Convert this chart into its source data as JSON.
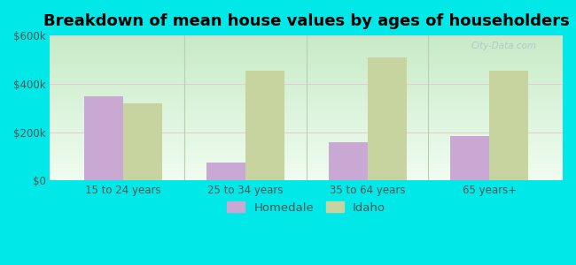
{
  "title": "Breakdown of mean house values by ages of householders",
  "categories": [
    "15 to 24 years",
    "25 to 34 years",
    "35 to 64 years",
    "65 years+"
  ],
  "homedale_values": [
    350000,
    75000,
    160000,
    185000
  ],
  "idaho_values": [
    320000,
    455000,
    510000,
    455000
  ],
  "homedale_color": "#c9a8d4",
  "idaho_color": "#c8d4a0",
  "background_color": "#00e8e8",
  "plot_bg_top": "#cce8cc",
  "plot_bg_bottom": "#f0faf0",
  "ylim": [
    0,
    600000
  ],
  "yticks": [
    0,
    200000,
    400000,
    600000
  ],
  "ytick_labels": [
    "$0",
    "$200k",
    "$400k",
    "$600k"
  ],
  "bar_width": 0.32,
  "legend_labels": [
    "Homedale",
    "Idaho"
  ],
  "title_fontsize": 13,
  "tick_fontsize": 8.5,
  "legend_fontsize": 9.5
}
